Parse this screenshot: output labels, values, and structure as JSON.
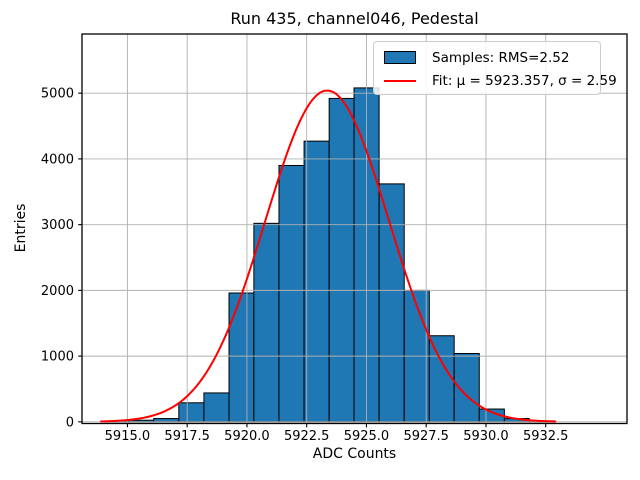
{
  "title": "Run 435, channel046, Pedestal",
  "chart_data": {
    "type": "bar",
    "subtype": "histogram_with_gaussian_fit",
    "title": "Run 435, channel046, Pedestal",
    "xlabel": "ADC Counts",
    "ylabel": "Entries",
    "xlim": [
      5913.1,
      5935.9
    ],
    "ylim": [
      -25,
      5900
    ],
    "grid": true,
    "x_ticks": [
      {
        "v": 5915.0,
        "label": "5915.0"
      },
      {
        "v": 5917.5,
        "label": "5917.5"
      },
      {
        "v": 5920.0,
        "label": "5920.0"
      },
      {
        "v": 5922.5,
        "label": "5922.5"
      },
      {
        "v": 5925.0,
        "label": "5925.0"
      },
      {
        "v": 5927.5,
        "label": "5927.5"
      },
      {
        "v": 5930.0,
        "label": "5930.0"
      },
      {
        "v": 5932.5,
        "label": "5932.5"
      }
    ],
    "y_ticks": [
      {
        "v": 0,
        "label": "0"
      },
      {
        "v": 1000,
        "label": "1000"
      },
      {
        "v": 2000,
        "label": "2000"
      },
      {
        "v": 3000,
        "label": "3000"
      },
      {
        "v": 4000,
        "label": "4000"
      },
      {
        "v": 5000,
        "label": "5000"
      }
    ],
    "bin_edges": [
      5914.01,
      5915.06,
      5916.1,
      5917.15,
      5918.2,
      5919.25,
      5920.29,
      5921.34,
      5922.39,
      5923.44,
      5924.48,
      5925.53,
      5926.58,
      5927.63,
      5928.67,
      5929.72,
      5930.77,
      5931.81,
      5932.86
    ],
    "counts": [
      8,
      25,
      50,
      290,
      440,
      1960,
      3020,
      3900,
      4270,
      4920,
      5080,
      3620,
      2000,
      1310,
      1040,
      195,
      50,
      15
    ],
    "fit": {
      "mu": 5923.357,
      "sigma": 2.59,
      "peak": 5040,
      "x_start": 5913.9,
      "x_end": 5932.9
    },
    "legend": {
      "position": "upper right",
      "entries": [
        {
          "swatch": "bar",
          "label": "Samples: RMS=2.52"
        },
        {
          "swatch": "line",
          "label": "Fit: μ = 5923.357, σ = 2.59"
        }
      ]
    },
    "colors": {
      "bar_fill": "#1f77b4",
      "bar_edge": "#000000",
      "fit_line": "#ff0000",
      "grid": "#b0b0b0",
      "spine": "#000000",
      "text": "#000000",
      "legend_border": "#cccccc"
    }
  }
}
